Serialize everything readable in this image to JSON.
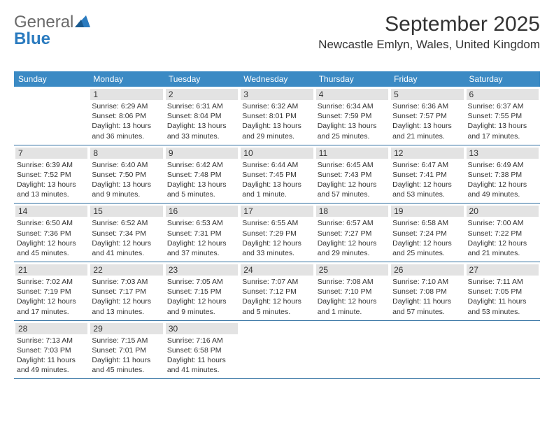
{
  "brand": {
    "text1": "General",
    "text2": "Blue"
  },
  "title": "September 2025",
  "location": "Newcastle Emlyn, Wales, United Kingdom",
  "colors": {
    "header_bg": "#3b8ac4",
    "row_border": "#2f6fa1",
    "daynum_bg": "#e3e3e3",
    "brand_gray": "#6a6a6a",
    "brand_blue": "#2b7bbf"
  },
  "dow": [
    "Sunday",
    "Monday",
    "Tuesday",
    "Wednesday",
    "Thursday",
    "Friday",
    "Saturday"
  ],
  "weeks": [
    [
      null,
      {
        "n": "1",
        "sr": "Sunrise: 6:29 AM",
        "ss": "Sunset: 8:06 PM",
        "dl": "Daylight: 13 hours and 36 minutes."
      },
      {
        "n": "2",
        "sr": "Sunrise: 6:31 AM",
        "ss": "Sunset: 8:04 PM",
        "dl": "Daylight: 13 hours and 33 minutes."
      },
      {
        "n": "3",
        "sr": "Sunrise: 6:32 AM",
        "ss": "Sunset: 8:01 PM",
        "dl": "Daylight: 13 hours and 29 minutes."
      },
      {
        "n": "4",
        "sr": "Sunrise: 6:34 AM",
        "ss": "Sunset: 7:59 PM",
        "dl": "Daylight: 13 hours and 25 minutes."
      },
      {
        "n": "5",
        "sr": "Sunrise: 6:36 AM",
        "ss": "Sunset: 7:57 PM",
        "dl": "Daylight: 13 hours and 21 minutes."
      },
      {
        "n": "6",
        "sr": "Sunrise: 6:37 AM",
        "ss": "Sunset: 7:55 PM",
        "dl": "Daylight: 13 hours and 17 minutes."
      }
    ],
    [
      {
        "n": "7",
        "sr": "Sunrise: 6:39 AM",
        "ss": "Sunset: 7:52 PM",
        "dl": "Daylight: 13 hours and 13 minutes."
      },
      {
        "n": "8",
        "sr": "Sunrise: 6:40 AM",
        "ss": "Sunset: 7:50 PM",
        "dl": "Daylight: 13 hours and 9 minutes."
      },
      {
        "n": "9",
        "sr": "Sunrise: 6:42 AM",
        "ss": "Sunset: 7:48 PM",
        "dl": "Daylight: 13 hours and 5 minutes."
      },
      {
        "n": "10",
        "sr": "Sunrise: 6:44 AM",
        "ss": "Sunset: 7:45 PM",
        "dl": "Daylight: 13 hours and 1 minute."
      },
      {
        "n": "11",
        "sr": "Sunrise: 6:45 AM",
        "ss": "Sunset: 7:43 PM",
        "dl": "Daylight: 12 hours and 57 minutes."
      },
      {
        "n": "12",
        "sr": "Sunrise: 6:47 AM",
        "ss": "Sunset: 7:41 PM",
        "dl": "Daylight: 12 hours and 53 minutes."
      },
      {
        "n": "13",
        "sr": "Sunrise: 6:49 AM",
        "ss": "Sunset: 7:38 PM",
        "dl": "Daylight: 12 hours and 49 minutes."
      }
    ],
    [
      {
        "n": "14",
        "sr": "Sunrise: 6:50 AM",
        "ss": "Sunset: 7:36 PM",
        "dl": "Daylight: 12 hours and 45 minutes."
      },
      {
        "n": "15",
        "sr": "Sunrise: 6:52 AM",
        "ss": "Sunset: 7:34 PM",
        "dl": "Daylight: 12 hours and 41 minutes."
      },
      {
        "n": "16",
        "sr": "Sunrise: 6:53 AM",
        "ss": "Sunset: 7:31 PM",
        "dl": "Daylight: 12 hours and 37 minutes."
      },
      {
        "n": "17",
        "sr": "Sunrise: 6:55 AM",
        "ss": "Sunset: 7:29 PM",
        "dl": "Daylight: 12 hours and 33 minutes."
      },
      {
        "n": "18",
        "sr": "Sunrise: 6:57 AM",
        "ss": "Sunset: 7:27 PM",
        "dl": "Daylight: 12 hours and 29 minutes."
      },
      {
        "n": "19",
        "sr": "Sunrise: 6:58 AM",
        "ss": "Sunset: 7:24 PM",
        "dl": "Daylight: 12 hours and 25 minutes."
      },
      {
        "n": "20",
        "sr": "Sunrise: 7:00 AM",
        "ss": "Sunset: 7:22 PM",
        "dl": "Daylight: 12 hours and 21 minutes."
      }
    ],
    [
      {
        "n": "21",
        "sr": "Sunrise: 7:02 AM",
        "ss": "Sunset: 7:19 PM",
        "dl": "Daylight: 12 hours and 17 minutes."
      },
      {
        "n": "22",
        "sr": "Sunrise: 7:03 AM",
        "ss": "Sunset: 7:17 PM",
        "dl": "Daylight: 12 hours and 13 minutes."
      },
      {
        "n": "23",
        "sr": "Sunrise: 7:05 AM",
        "ss": "Sunset: 7:15 PM",
        "dl": "Daylight: 12 hours and 9 minutes."
      },
      {
        "n": "24",
        "sr": "Sunrise: 7:07 AM",
        "ss": "Sunset: 7:12 PM",
        "dl": "Daylight: 12 hours and 5 minutes."
      },
      {
        "n": "25",
        "sr": "Sunrise: 7:08 AM",
        "ss": "Sunset: 7:10 PM",
        "dl": "Daylight: 12 hours and 1 minute."
      },
      {
        "n": "26",
        "sr": "Sunrise: 7:10 AM",
        "ss": "Sunset: 7:08 PM",
        "dl": "Daylight: 11 hours and 57 minutes."
      },
      {
        "n": "27",
        "sr": "Sunrise: 7:11 AM",
        "ss": "Sunset: 7:05 PM",
        "dl": "Daylight: 11 hours and 53 minutes."
      }
    ],
    [
      {
        "n": "28",
        "sr": "Sunrise: 7:13 AM",
        "ss": "Sunset: 7:03 PM",
        "dl": "Daylight: 11 hours and 49 minutes."
      },
      {
        "n": "29",
        "sr": "Sunrise: 7:15 AM",
        "ss": "Sunset: 7:01 PM",
        "dl": "Daylight: 11 hours and 45 minutes."
      },
      {
        "n": "30",
        "sr": "Sunrise: 7:16 AM",
        "ss": "Sunset: 6:58 PM",
        "dl": "Daylight: 11 hours and 41 minutes."
      },
      null,
      null,
      null,
      null
    ]
  ]
}
